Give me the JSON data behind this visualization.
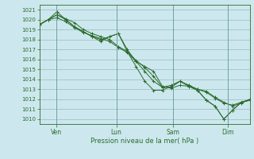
{
  "xlabel": "Pression niveau de la mer( hPa )",
  "background_color": "#cce8ee",
  "grid_color": "#99bbbb",
  "line_color": "#2d6b2d",
  "ylim": [
    1009.5,
    1021.5
  ],
  "yticks": [
    1010,
    1011,
    1012,
    1013,
    1014,
    1015,
    1016,
    1017,
    1018,
    1019,
    1020,
    1021
  ],
  "xtick_labels": [
    "Ven",
    "Lun",
    "Sam",
    "Dim"
  ],
  "xtick_positions": [
    0.08,
    0.365,
    0.635,
    0.895
  ],
  "series": [
    [
      1019.5,
      1020.0,
      1020.2,
      1019.8,
      1019.2,
      1018.7,
      1018.4,
      1018.1,
      1017.8,
      1017.2,
      1016.7,
      1015.8,
      1014.8,
      1013.8,
      1013.2,
      1013.4,
      1013.8,
      1013.4,
      1013.0,
      1012.8,
      1012.2,
      1011.7,
      1011.3,
      1011.6,
      1012.0
    ],
    [
      1019.5,
      1020.0,
      1020.5,
      1020.1,
      1019.7,
      1019.0,
      1018.6,
      1018.3,
      1018.0,
      1017.3,
      1016.8,
      1015.9,
      1015.2,
      1014.3,
      1013.2,
      1013.2,
      1013.8,
      1013.4,
      1013.0,
      1012.7,
      1012.1,
      1011.6,
      1011.4,
      1011.7,
      1012.0
    ],
    [
      1019.5,
      1020.0,
      1020.8,
      1020.0,
      1019.3,
      1018.8,
      1018.3,
      1017.8,
      1018.3,
      1018.6,
      1016.8,
      1015.3,
      1013.8,
      1012.9,
      1012.9,
      1013.3,
      1013.8,
      1013.3,
      1012.9,
      1011.9,
      1011.3,
      1010.0,
      1010.9,
      1011.7,
      1011.9
    ],
    [
      1019.5,
      1020.0,
      1020.5,
      1020.0,
      1019.3,
      1018.8,
      1018.3,
      1018.0,
      1018.3,
      1018.6,
      1017.0,
      1015.8,
      1015.3,
      1014.8,
      1013.3,
      1013.1,
      1013.4,
      1013.3,
      1012.9,
      1011.9,
      1011.3,
      1010.0,
      1010.9,
      1011.7,
      1011.9
    ]
  ]
}
